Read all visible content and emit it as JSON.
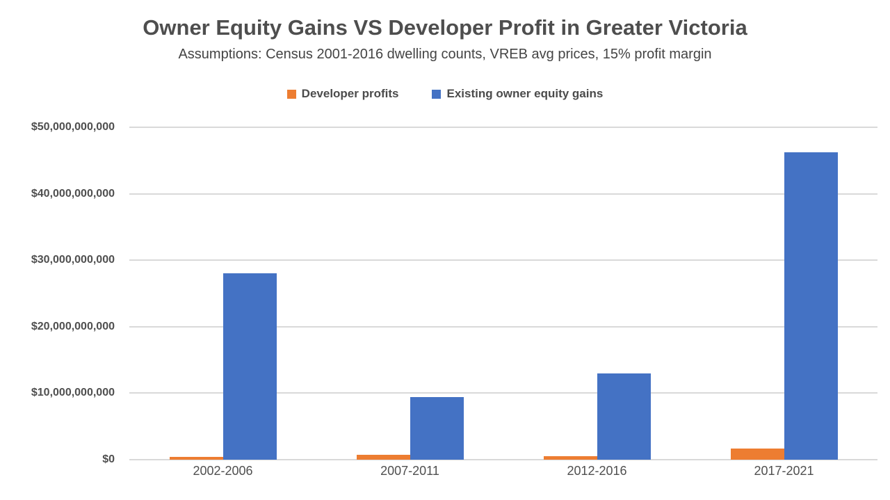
{
  "chart_data": {
    "type": "bar",
    "title": "Owner Equity Gains VS Developer Profit in Greater Victoria",
    "subtitle": "Assumptions: Census 2001-2016 dwelling counts, VREB avg prices, 15% profit margin",
    "categories": [
      "2002-2006",
      "2007-2011",
      "2012-2016",
      "2017-2021"
    ],
    "series": [
      {
        "name": "Developer profits",
        "color": "#ED7D31",
        "values": [
          450000000,
          700000000,
          550000000,
          1700000000
        ]
      },
      {
        "name": "Existing owner equity gains",
        "color": "#4472C4",
        "values": [
          28000000000,
          9400000000,
          13000000000,
          46200000000
        ]
      }
    ],
    "xlabel": "",
    "ylabel": "",
    "ylim": [
      0,
      50000000000
    ],
    "ytick_interval": 10000000000,
    "ytick_labels": [
      "$0",
      "$10,000,000,000",
      "$20,000,000,000",
      "$30,000,000,000",
      "$40,000,000,000",
      "$50,000,000,000"
    ],
    "grid": true,
    "legend_position": "top",
    "colors": {
      "gridline": "#D9D9D9",
      "title_text": "#4E4E4E",
      "axis_text": "#4F4F4F"
    }
  }
}
